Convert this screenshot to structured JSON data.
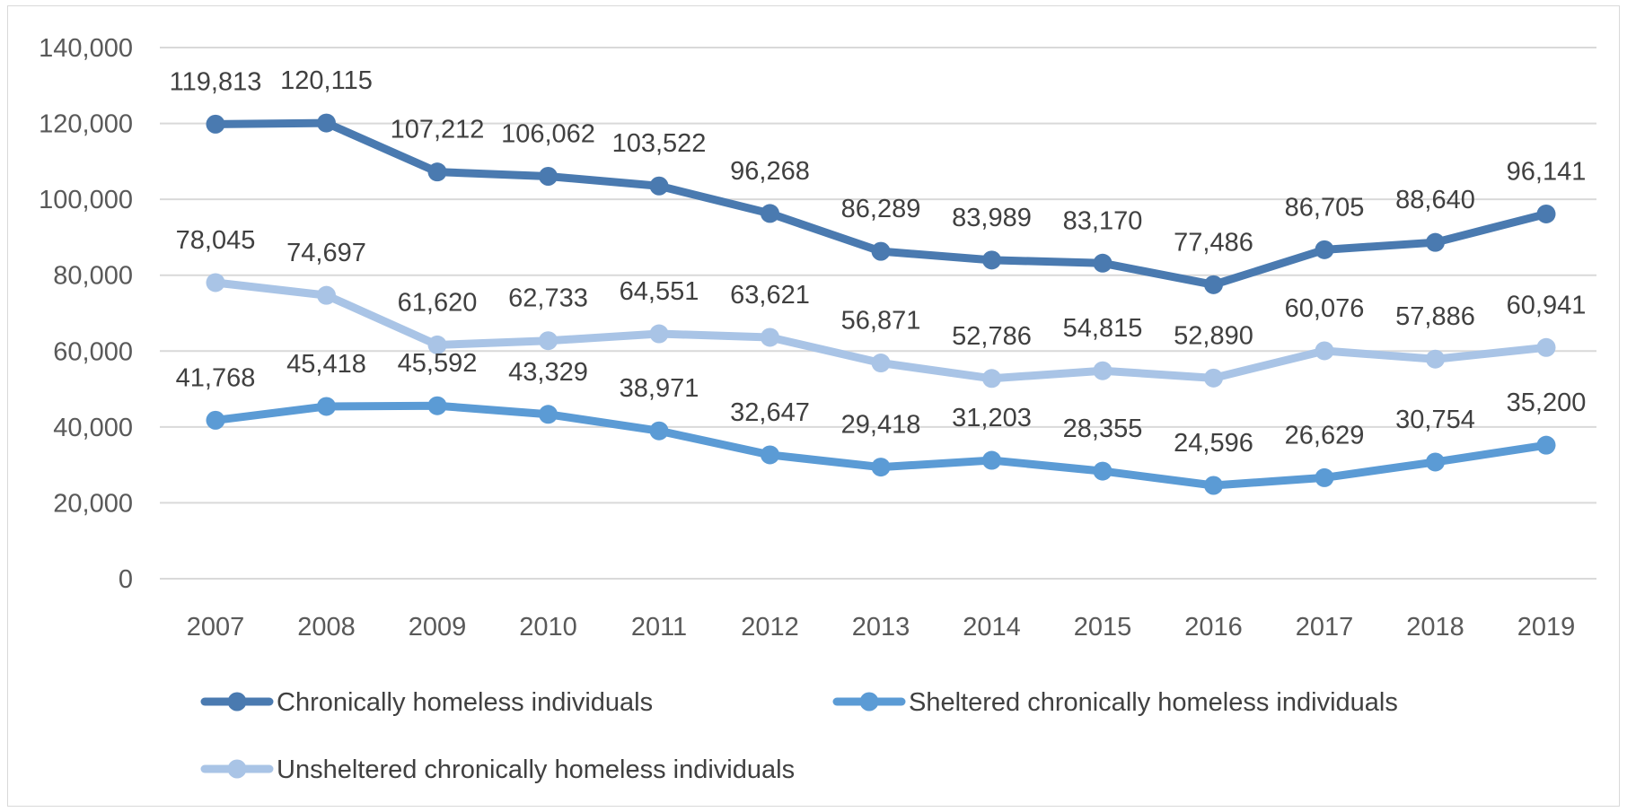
{
  "chart_data": {
    "type": "line",
    "title": "",
    "xlabel": "",
    "ylabel": "",
    "x": [
      "2007",
      "2008",
      "2009",
      "2010",
      "2011",
      "2012",
      "2013",
      "2014",
      "2015",
      "2016",
      "2017",
      "2018",
      "2019"
    ],
    "ylim": [
      0,
      140000
    ],
    "y_ticks": [
      0,
      20000,
      40000,
      60000,
      80000,
      100000,
      120000,
      140000
    ],
    "y_tick_labels": [
      "0",
      "20,000",
      "40,000",
      "60,000",
      "80,000",
      "100,000",
      "120,000",
      "140,000"
    ],
    "grid": "horizontal",
    "legend_position": "bottom",
    "series": [
      {
        "name": "Chronically homeless individuals",
        "color": "#4a7ab0",
        "values": [
          119813,
          120115,
          107212,
          106062,
          103522,
          96268,
          86289,
          83989,
          83170,
          77486,
          86705,
          88640,
          96141
        ],
        "labels": [
          "119,813",
          "120,115",
          "107,212",
          "106,062",
          "103,522",
          "96,268",
          "86,289",
          "83,989",
          "83,170",
          "77,486",
          "86,705",
          "88,640",
          "96,141"
        ]
      },
      {
        "name": "Sheltered chronically homeless individuals",
        "color": "#5b9bd5",
        "values": [
          41768,
          45418,
          45592,
          43329,
          38971,
          32647,
          29418,
          31203,
          28355,
          24596,
          26629,
          30754,
          35200
        ],
        "labels": [
          "41,768",
          "45,418",
          "45,592",
          "43,329",
          "38,971",
          "32,647",
          "29,418",
          "31,203",
          "28,355",
          "24,596",
          "26,629",
          "30,754",
          "35,200"
        ]
      },
      {
        "name": "Unsheltered chronically homeless individuals",
        "color": "#a9c4e6",
        "values": [
          78045,
          74697,
          61620,
          62733,
          64551,
          63621,
          56871,
          52786,
          54815,
          52890,
          60076,
          57886,
          60941
        ],
        "labels": [
          "78,045",
          "74,697",
          "61,620",
          "62,733",
          "64,551",
          "63,621",
          "56,871",
          "52,786",
          "54,815",
          "52,890",
          "60,076",
          "57,886",
          "60,941"
        ]
      }
    ]
  }
}
